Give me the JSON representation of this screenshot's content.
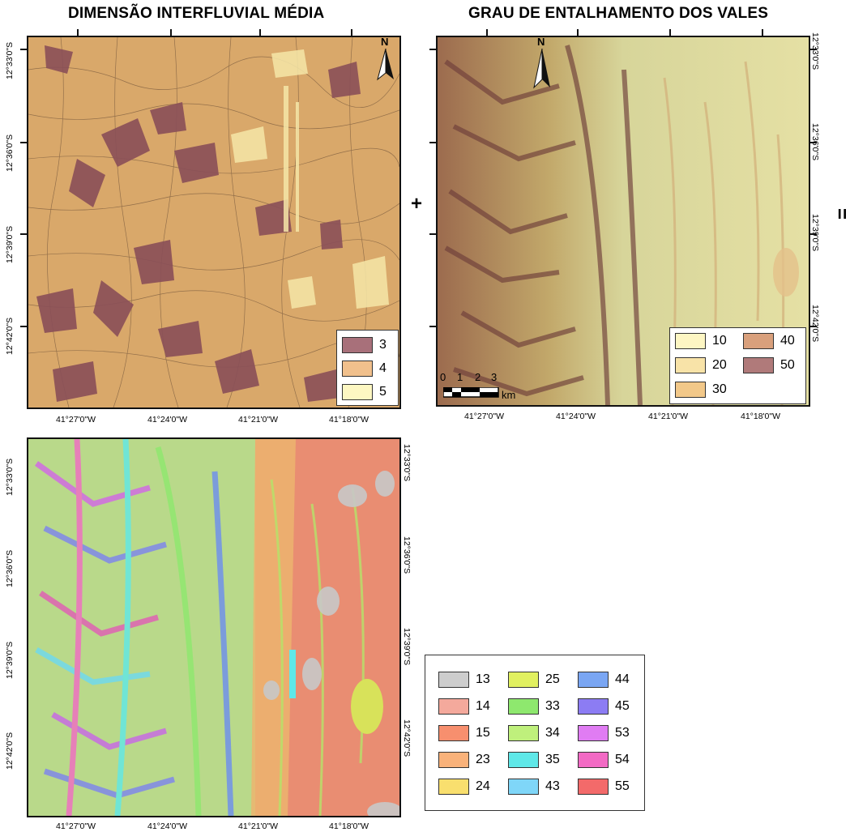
{
  "maps": {
    "interfluvial": {
      "title": "DIMENSÃO INTERFLUVIAL MÉDIA",
      "legend": [
        {
          "label": "3",
          "color": "#a8707a"
        },
        {
          "label": "4",
          "color": "#f1c08c"
        },
        {
          "label": "5",
          "color": "#fdf7c2"
        }
      ]
    },
    "entalhamento": {
      "title": "GRAU DE ENTALHAMENTO DOS VALES",
      "legend": [
        {
          "label": "10",
          "color": "#fdf6c3"
        },
        {
          "label": "20",
          "color": "#f8e3a8"
        },
        {
          "label": "30",
          "color": "#f2c889"
        },
        {
          "label": "40",
          "color": "#d9a07c"
        },
        {
          "label": "50",
          "color": "#b07a7a"
        }
      ],
      "north_label": "N",
      "scale": {
        "ticks": [
          "0",
          "1",
          "2",
          "3"
        ],
        "unit": "km"
      }
    },
    "combined": {
      "legend": [
        {
          "label": "13",
          "color": "#cdcdcd"
        },
        {
          "label": "14",
          "color": "#f4a99c"
        },
        {
          "label": "15",
          "color": "#f78f6e"
        },
        {
          "label": "23",
          "color": "#f9b27a"
        },
        {
          "label": "24",
          "color": "#f9df6e"
        },
        {
          "label": "25",
          "color": "#e1f060"
        },
        {
          "label": "33",
          "color": "#8ee86e"
        },
        {
          "label": "34",
          "color": "#bff07c"
        },
        {
          "label": "35",
          "color": "#5fe8e8"
        },
        {
          "label": "43",
          "color": "#7fd6f8"
        },
        {
          "label": "44",
          "color": "#7aa6f3"
        },
        {
          "label": "45",
          "color": "#8c7cf3"
        },
        {
          "label": "53",
          "color": "#e07cf3"
        },
        {
          "label": "54",
          "color": "#f26ac4"
        },
        {
          "label": "55",
          "color": "#f36a6a"
        }
      ]
    }
  },
  "interfluvial_north_label": "N",
  "operators": {
    "plus": "+",
    "equals": "="
  },
  "lat_labels": [
    "12°33'0\"S",
    "12°36'0\"S",
    "12°39'0\"S",
    "12°42'0\"S"
  ],
  "lon_labels": [
    "41°27'0\"W",
    "41°24'0\"W",
    "41°21'0\"W",
    "41°18'0\"W"
  ]
}
